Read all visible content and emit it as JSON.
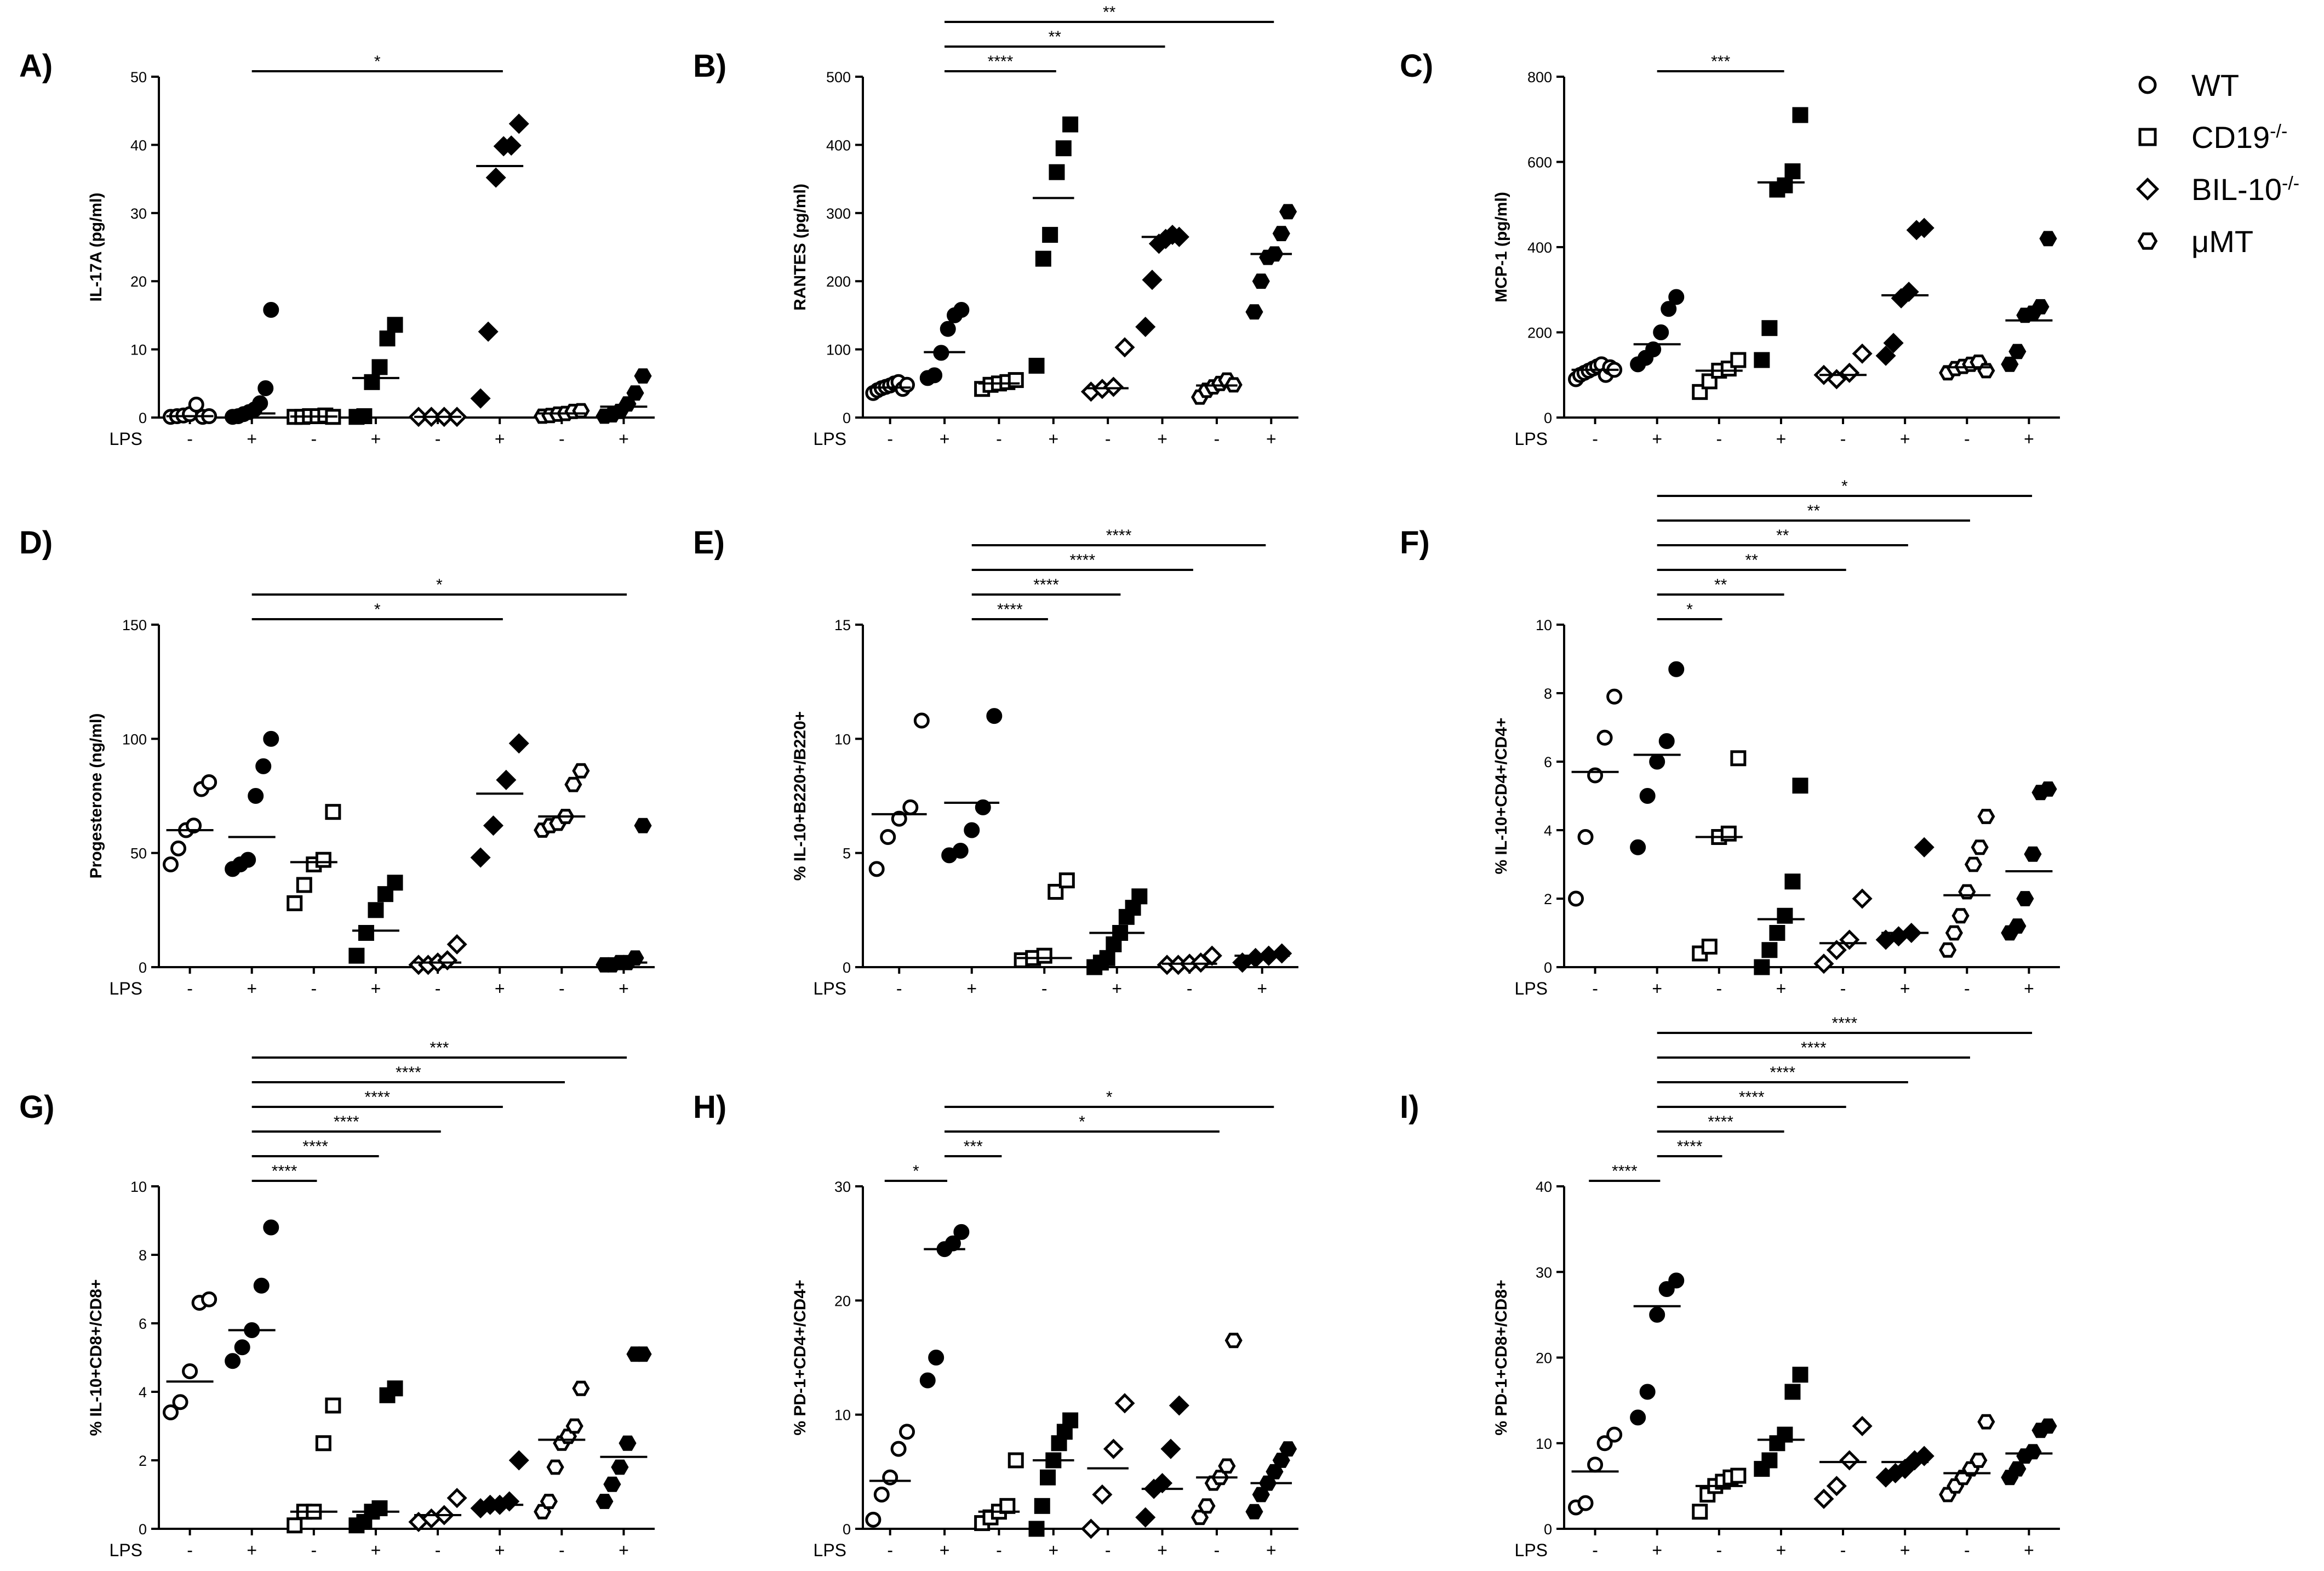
{
  "legend": {
    "items": [
      {
        "label": "WT",
        "marker": "circle-icon"
      },
      {
        "label": "CD19",
        "sup": "-/-",
        "marker": "square-icon"
      },
      {
        "label": "BIL-10",
        "sup": "-/-",
        "marker": "diamond-icon"
      },
      {
        "label": "μMT",
        "marker": "hexagon-icon"
      }
    ]
  },
  "lps_label": "LPS",
  "lps_ticks": [
    "-",
    "+",
    "-",
    "+",
    "-",
    "+",
    "-",
    "+"
  ],
  "groups": [
    {
      "strain": "WT",
      "lps": "-",
      "marker": "circle",
      "filled": false
    },
    {
      "strain": "WT",
      "lps": "+",
      "marker": "circle",
      "filled": true
    },
    {
      "strain": "CD19-/-",
      "lps": "-",
      "marker": "square",
      "filled": false
    },
    {
      "strain": "CD19-/-",
      "lps": "+",
      "marker": "square",
      "filled": true
    },
    {
      "strain": "BIL-10-/-",
      "lps": "-",
      "marker": "diamond",
      "filled": false
    },
    {
      "strain": "BIL-10-/-",
      "lps": "+",
      "marker": "diamond",
      "filled": true
    },
    {
      "strain": "μMT",
      "lps": "-",
      "marker": "hexagon",
      "filled": false
    },
    {
      "strain": "μMT",
      "lps": "+",
      "marker": "hexagon",
      "filled": true
    }
  ],
  "chart_data": [
    {
      "panel": "A)",
      "type": "scatter",
      "ylabel": "IL-17A (pg/ml)",
      "ylim": [
        0,
        50
      ],
      "yticks": [
        0,
        10,
        20,
        30,
        40,
        50
      ],
      "values": [
        [
          0.1,
          0.2,
          0.3,
          0.5,
          1.9,
          0.1,
          0.2
        ],
        [
          0.1,
          0.2,
          0.5,
          0.8,
          1.2,
          2.1,
          4.3,
          15.8
        ],
        [
          0.1,
          0.1,
          0.2,
          0.2,
          0.3,
          0.1
        ],
        [
          0.1,
          0.2,
          5.2,
          7.4,
          11.6,
          13.6
        ],
        [
          0.1,
          0.1,
          0.1,
          0.1
        ],
        [
          2.8,
          12.6,
          35.2,
          39.8,
          39.9,
          43.1
        ],
        [
          0.2,
          0.3,
          0.5,
          0.6,
          0.9,
          1.0
        ],
        [
          0.2,
          0.4,
          0.9,
          2.0,
          3.6,
          6.1
        ]
      ],
      "medians": [
        0.2,
        0.6,
        0.15,
        5.8,
        0.1,
        36.9,
        0.6,
        1.6
      ],
      "significance": [
        {
          "from": 1,
          "to": 5,
          "label": "*"
        }
      ]
    },
    {
      "panel": "B)",
      "type": "scatter",
      "ylabel": "RANTES (pg/ml)",
      "ylim": [
        0,
        500
      ],
      "yticks": [
        0,
        100,
        200,
        300,
        400,
        500
      ],
      "values": [
        [
          36,
          40,
          43,
          45,
          47,
          50,
          52,
          42,
          48
        ],
        [
          58,
          62,
          95,
          130,
          150,
          158
        ],
        [
          42,
          48,
          50,
          52,
          55
        ],
        [
          76,
          233,
          268,
          360,
          395,
          430
        ],
        [
          38,
          42,
          45,
          103
        ],
        [
          133,
          202,
          255,
          262,
          268,
          265
        ],
        [
          30,
          40,
          45,
          50,
          55,
          48
        ],
        [
          155,
          200,
          235,
          240,
          270,
          302
        ]
      ],
      "medians": [
        44,
        96,
        50,
        322,
        43,
        265,
        47,
        240
      ],
      "significance": [
        {
          "from": 1,
          "to": 3,
          "label": "****"
        },
        {
          "from": 1,
          "to": 5,
          "label": "**"
        },
        {
          "from": 1,
          "to": 7,
          "label": "**"
        }
      ]
    },
    {
      "panel": "C)",
      "type": "scatter",
      "ylabel": "MCP-1 (pg/ml)",
      "ylim": [
        0,
        800
      ],
      "yticks": [
        0,
        200,
        400,
        600,
        800
      ],
      "values": [
        [
          90,
          100,
          105,
          110,
          115,
          120,
          125,
          100,
          118,
          112
        ],
        [
          125,
          140,
          160,
          200,
          255,
          283
        ],
        [
          60,
          85,
          110,
          115,
          135
        ],
        [
          135,
          210,
          535,
          545,
          578,
          710
        ],
        [
          100,
          90,
          105,
          150
        ],
        [
          145,
          175,
          280,
          295,
          440,
          445
        ],
        [
          105,
          115,
          120,
          125,
          130,
          110
        ],
        [
          125,
          155,
          240,
          245,
          260,
          420
        ]
      ],
      "medians": [
        112,
        172,
        110,
        552,
        100,
        287,
        118,
        228
      ],
      "significance": [
        {
          "from": 1,
          "to": 3,
          "label": "***"
        }
      ]
    },
    {
      "panel": "D)",
      "type": "scatter",
      "ylabel": "Progesterone (ng/ml)",
      "ylim": [
        0,
        150
      ],
      "yticks": [
        0,
        50,
        100,
        150
      ],
      "values": [
        [
          45,
          52,
          60,
          62,
          78,
          81
        ],
        [
          43,
          45,
          47,
          75,
          88,
          100
        ],
        [
          28,
          36,
          45,
          47,
          68
        ],
        [
          5,
          15,
          25,
          32,
          37
        ],
        [
          1,
          1,
          2,
          3,
          10
        ],
        [
          48,
          62,
          82,
          98
        ],
        [
          60,
          62,
          63,
          66,
          80,
          86
        ],
        [
          1,
          1,
          2,
          2,
          4,
          62
        ]
      ],
      "medians": [
        60,
        57,
        46,
        16,
        2,
        76,
        66,
        2
      ],
      "significance": [
        {
          "from": 1,
          "to": 5,
          "label": "*"
        },
        {
          "from": 1,
          "to": 7,
          "label": "*"
        }
      ]
    },
    {
      "panel": "E)",
      "type": "scatter",
      "ylabel": "% IL-10+B220+/B220+",
      "ylim": [
        0,
        15
      ],
      "yticks": [
        0,
        5,
        10,
        15
      ],
      "values": [
        [
          4.3,
          5.7,
          6.5,
          7.0,
          10.8
        ],
        [
          4.9,
          5.1,
          6.0,
          7.0,
          11.0
        ],
        [
          0.3,
          0.4,
          0.5,
          3.3,
          3.8
        ],
        [
          0,
          0.2,
          0.4,
          1.0,
          1.5,
          2.2,
          2.6,
          3.1
        ],
        [
          0.1,
          0.1,
          0.15,
          0.2,
          0.5
        ],
        [
          0.2,
          0.4,
          0.5,
          0.6
        ]
      ],
      "medians": [
        6.7,
        7.2,
        0.4,
        1.5,
        0.15,
        0.5
      ],
      "significance": [
        {
          "from": 1,
          "to": 2,
          "label": "****"
        },
        {
          "from": 1,
          "to": 3,
          "label": "****"
        },
        {
          "from": 1,
          "to": 4,
          "label": "****"
        },
        {
          "from": 1,
          "to": 5,
          "label": "****"
        }
      ]
    },
    {
      "panel": "F)",
      "type": "scatter",
      "ylabel": "% IL-10+CD4+/CD4+",
      "ylim": [
        0,
        10
      ],
      "yticks": [
        0,
        2,
        4,
        6,
        8,
        10
      ],
      "values": [
        [
          2.0,
          3.8,
          5.6,
          6.7,
          7.9
        ],
        [
          3.5,
          5.0,
          6.0,
          6.6,
          8.7
        ],
        [
          0.4,
          0.6,
          3.8,
          3.9,
          6.1
        ],
        [
          0,
          0.5,
          1.0,
          1.5,
          2.5,
          5.3
        ],
        [
          0.1,
          0.5,
          0.8,
          2.0
        ],
        [
          0.8,
          0.9,
          1.0,
          3.5
        ],
        [
          0.5,
          1.0,
          1.5,
          2.2,
          3.0,
          3.5,
          4.4
        ],
        [
          1.0,
          1.2,
          2.0,
          3.3,
          5.1,
          5.2
        ]
      ],
      "medians": [
        5.7,
        6.2,
        3.8,
        1.4,
        0.7,
        1.0,
        2.1,
        2.8
      ],
      "significance": [
        {
          "from": 1,
          "to": 2,
          "label": "*"
        },
        {
          "from": 1,
          "to": 3,
          "label": "**"
        },
        {
          "from": 1,
          "to": 4,
          "label": "**"
        },
        {
          "from": 1,
          "to": 5,
          "label": "**"
        },
        {
          "from": 1,
          "to": 6,
          "label": "**"
        },
        {
          "from": 1,
          "to": 7,
          "label": "*"
        }
      ]
    },
    {
      "panel": "G)",
      "type": "scatter",
      "ylabel": "% IL-10+CD8+/CD8+",
      "ylim": [
        0,
        10
      ],
      "yticks": [
        0,
        2,
        4,
        6,
        8,
        10
      ],
      "values": [
        [
          3.4,
          3.7,
          4.6,
          6.6,
          6.7
        ],
        [
          4.9,
          5.3,
          5.8,
          7.1,
          8.8
        ],
        [
          0.1,
          0.5,
          0.5,
          2.5,
          3.6
        ],
        [
          0.1,
          0.2,
          0.5,
          0.6,
          3.9,
          4.1
        ],
        [
          0.2,
          0.3,
          0.4,
          0.9
        ],
        [
          0.6,
          0.7,
          0.7,
          0.8,
          2.0
        ],
        [
          0.5,
          0.8,
          1.8,
          2.5,
          2.7,
          3.0,
          4.1
        ],
        [
          0.8,
          1.3,
          1.8,
          2.5,
          5.1,
          5.1
        ]
      ],
      "medians": [
        4.3,
        5.8,
        0.5,
        0.5,
        0.4,
        0.7,
        2.6,
        2.1
      ],
      "significance": [
        {
          "from": 1,
          "to": 2,
          "label": "****"
        },
        {
          "from": 1,
          "to": 3,
          "label": "****"
        },
        {
          "from": 1,
          "to": 4,
          "label": "****"
        },
        {
          "from": 1,
          "to": 5,
          "label": "****"
        },
        {
          "from": 1,
          "to": 6,
          "label": "****"
        },
        {
          "from": 1,
          "to": 7,
          "label": "***"
        }
      ]
    },
    {
      "panel": "H)",
      "type": "scatter",
      "ylabel": "% PD-1+CD4+/CD4+",
      "ylim": [
        0,
        30
      ],
      "yticks": [
        0,
        10,
        20,
        30
      ],
      "values": [
        [
          0.8,
          3.0,
          4.5,
          7.0,
          8.5
        ],
        [
          13,
          15,
          24.5,
          25,
          26
        ],
        [
          0.5,
          1.0,
          1.5,
          2.0,
          6.0
        ],
        [
          0,
          2.0,
          4.5,
          6.0,
          7.5,
          8.5,
          9.5
        ],
        [
          0,
          3.0,
          7.0,
          11
        ],
        [
          1.0,
          3.5,
          4.0,
          7.0,
          10.8
        ],
        [
          1.0,
          2.0,
          4.0,
          4.5,
          5.5,
          16.5
        ],
        [
          1.5,
          3.0,
          4.0,
          5.0,
          6.0,
          7.0
        ]
      ],
      "medians": [
        4.2,
        24.5,
        1.5,
        6.0,
        5.3,
        3.5,
        4.5,
        4.0
      ],
      "significance": [
        {
          "from": 0,
          "to": 1,
          "label": "*"
        },
        {
          "from": 1,
          "to": 2,
          "label": "***"
        },
        {
          "from": 1,
          "to": 6,
          "label": "*"
        },
        {
          "from": 1,
          "to": 7,
          "label": "*"
        }
      ]
    },
    {
      "panel": "I)",
      "type": "scatter",
      "ylabel": "% PD-1+CD8+/CD8+",
      "ylim": [
        0,
        40
      ],
      "yticks": [
        0,
        10,
        20,
        30,
        40
      ],
      "values": [
        [
          2.5,
          3.0,
          7.5,
          10,
          11
        ],
        [
          13,
          16,
          25,
          28,
          29
        ],
        [
          2.0,
          4.0,
          5.0,
          5.5,
          6.0,
          6.2
        ],
        [
          7.0,
          8.0,
          10,
          11,
          16,
          18
        ],
        [
          3.5,
          5.0,
          8.0,
          12
        ],
        [
          6.0,
          6.5,
          7.0,
          8.0,
          8.5
        ],
        [
          4.0,
          5.0,
          6.0,
          7.0,
          8.0,
          12.5
        ],
        [
          6.0,
          7.0,
          8.5,
          9.0,
          11.5,
          12
        ]
      ],
      "medians": [
        6.7,
        26,
        5.0,
        10.4,
        7.8,
        7.8,
        6.5,
        8.8
      ],
      "significance": [
        {
          "from": 0,
          "to": 1,
          "label": "****"
        },
        {
          "from": 1,
          "to": 2,
          "label": "****"
        },
        {
          "from": 1,
          "to": 3,
          "label": "****"
        },
        {
          "from": 1,
          "to": 4,
          "label": "****"
        },
        {
          "from": 1,
          "to": 5,
          "label": "****"
        },
        {
          "from": 1,
          "to": 6,
          "label": "****"
        },
        {
          "from": 1,
          "to": 7,
          "label": "****"
        }
      ]
    }
  ]
}
